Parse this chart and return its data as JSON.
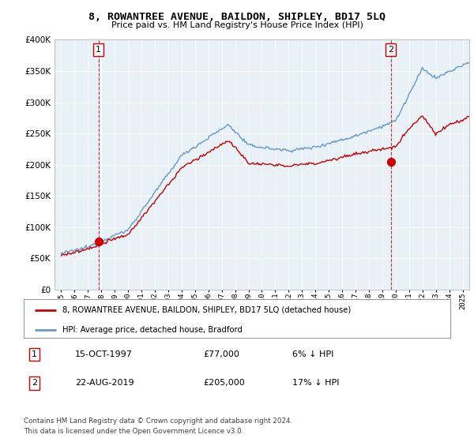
{
  "title": "8, ROWANTREE AVENUE, BAILDON, SHIPLEY, BD17 5LQ",
  "subtitle": "Price paid vs. HM Land Registry's House Price Index (HPI)",
  "legend_line1": "8, ROWANTREE AVENUE, BAILDON, SHIPLEY, BD17 5LQ (detached house)",
  "legend_line2": "HPI: Average price, detached house, Bradford",
  "footnote1": "Contains HM Land Registry data © Crown copyright and database right 2024.",
  "footnote2": "This data is licensed under the Open Government Licence v3.0.",
  "sale1_label": "1",
  "sale1_date": "15-OCT-1997",
  "sale1_price": "£77,000",
  "sale1_hpi": "6% ↓ HPI",
  "sale1_x": 1997.79,
  "sale1_y": 77000,
  "sale2_label": "2",
  "sale2_date": "22-AUG-2019",
  "sale2_price": "£205,000",
  "sale2_hpi": "17% ↓ HPI",
  "sale2_x": 2019.64,
  "sale2_y": 205000,
  "red_color": "#cc0000",
  "blue_color": "#6699cc",
  "chart_bg": "#e8f0f8",
  "background_color": "#ffffff",
  "grid_color": "#ffffff",
  "ylim": [
    0,
    400000
  ],
  "xlim": [
    1994.5,
    2025.5
  ],
  "yticks": [
    0,
    50000,
    100000,
    150000,
    200000,
    250000,
    300000,
    350000,
    400000
  ],
  "xticks": [
    1995,
    1996,
    1997,
    1998,
    1999,
    2000,
    2001,
    2002,
    2003,
    2004,
    2005,
    2006,
    2007,
    2008,
    2009,
    2010,
    2011,
    2012,
    2013,
    2014,
    2015,
    2016,
    2017,
    2018,
    2019,
    2020,
    2021,
    2022,
    2023,
    2024,
    2025
  ]
}
